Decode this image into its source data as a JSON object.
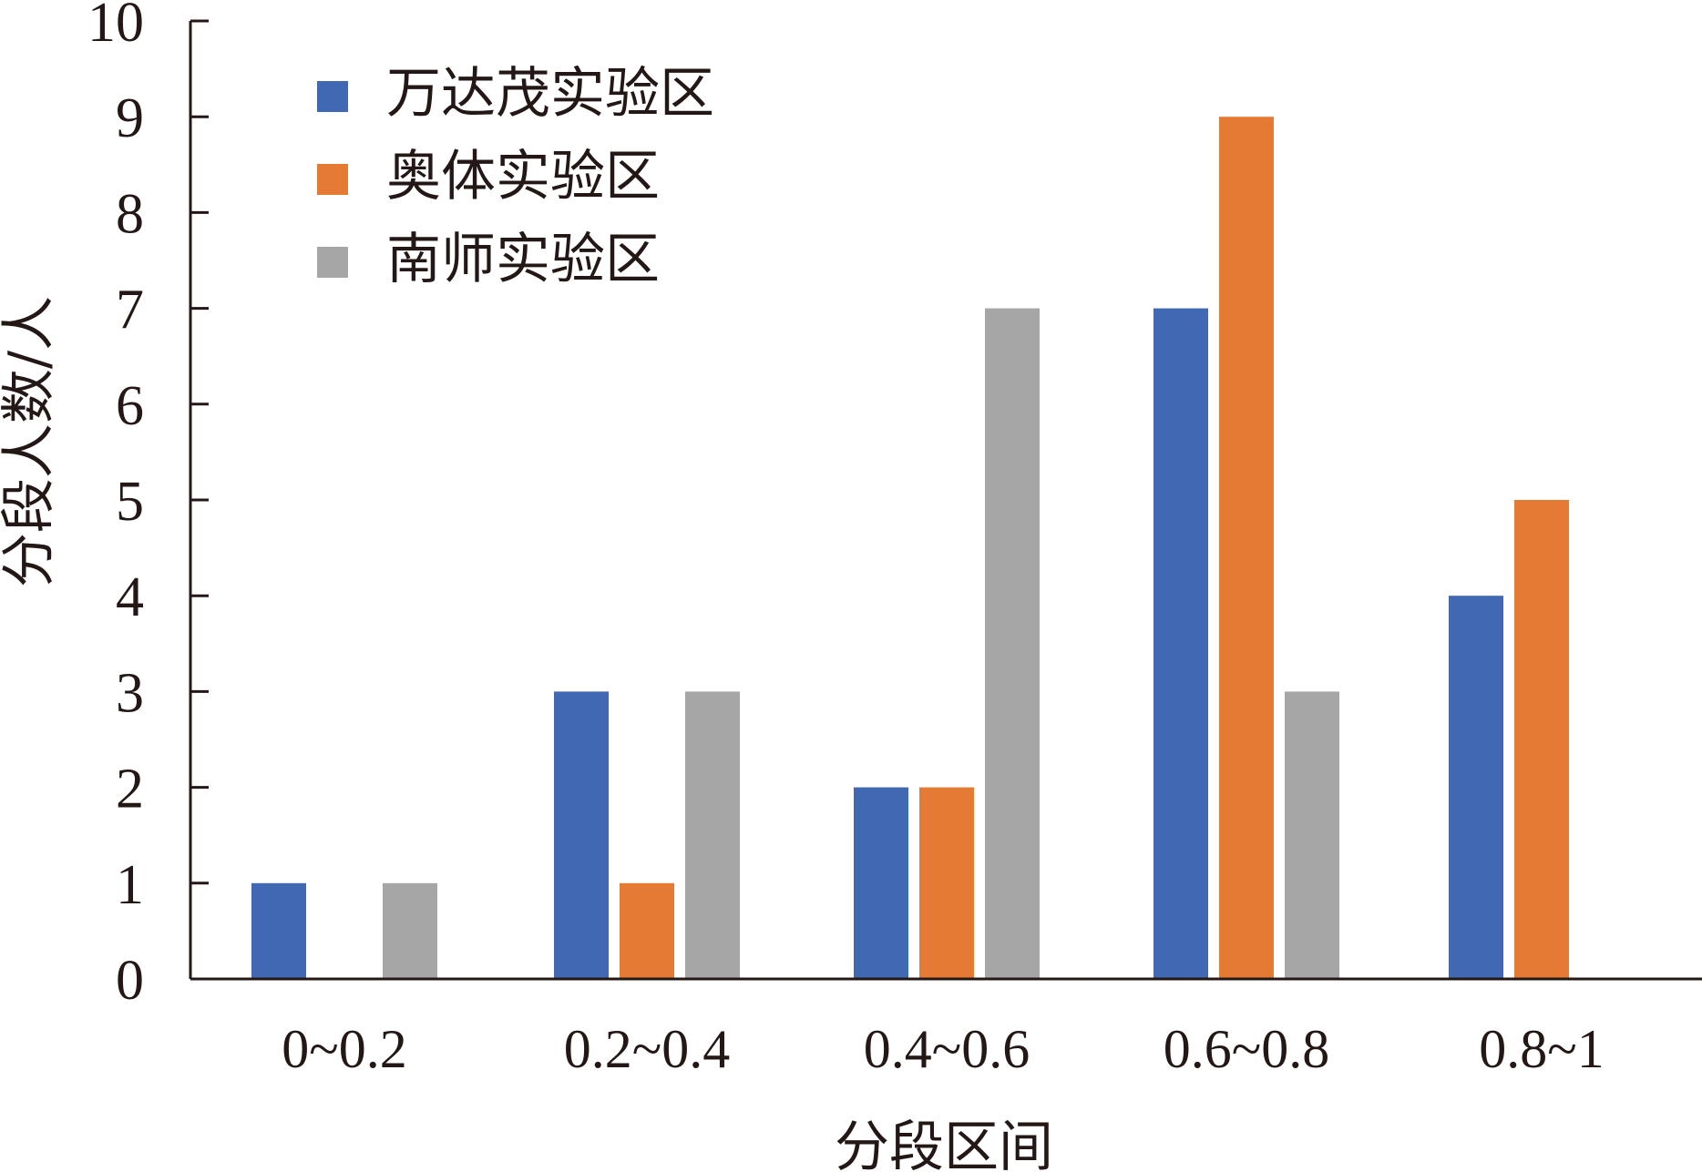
{
  "chart_data": {
    "type": "bar",
    "title": "",
    "xlabel": "分段区间",
    "ylabel": "分段人数/人",
    "categories": [
      "0~0.2",
      "0.2~0.4",
      "0.4~0.6",
      "0.6~0.8",
      "0.8~1"
    ],
    "ylim": [
      0,
      10
    ],
    "yticks": [
      "0",
      "1",
      "2",
      "3",
      "4",
      "5",
      "6",
      "7",
      "8",
      "9",
      "10"
    ],
    "grid": false,
    "legend_position": "top-left",
    "series": [
      {
        "name": "万达茂实验区",
        "color": "#4169B3",
        "values": [
          1,
          3,
          2,
          7,
          4
        ]
      },
      {
        "name": "奥体实验区",
        "color": "#E47A34",
        "values": [
          0,
          1,
          2,
          9,
          5
        ]
      },
      {
        "name": "南师实验区",
        "color": "#A6A6A6",
        "values": [
          1,
          3,
          7,
          3,
          0
        ]
      }
    ]
  }
}
